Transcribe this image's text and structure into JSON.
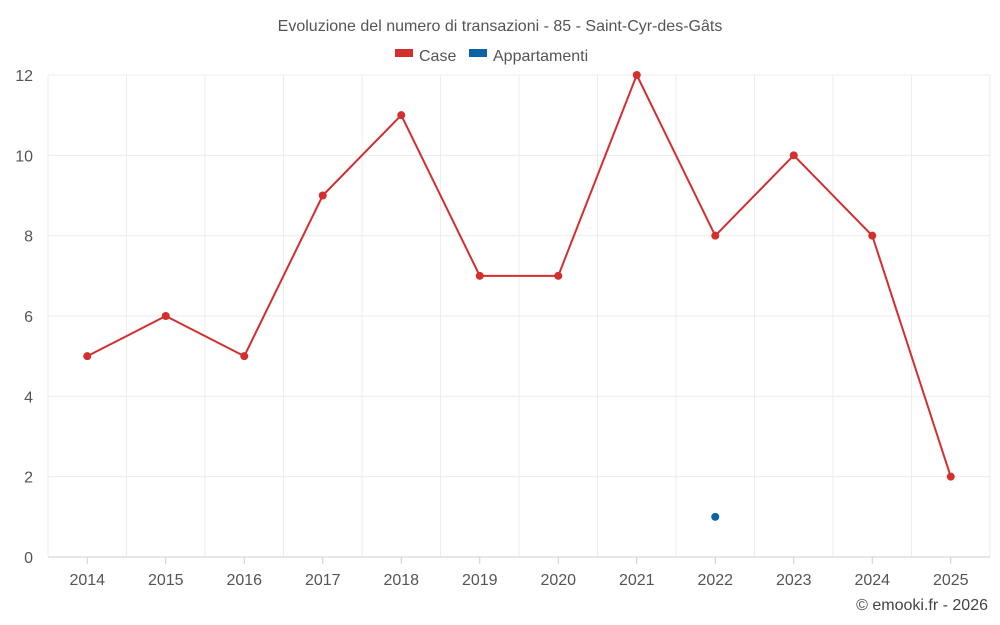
{
  "chart_data": {
    "type": "line",
    "title": "Evoluzione del numero di transazioni - 85 - Saint-Cyr-des-Gâts",
    "categories": [
      "2014",
      "2015",
      "2016",
      "2017",
      "2018",
      "2019",
      "2020",
      "2021",
      "2022",
      "2023",
      "2024",
      "2025"
    ],
    "series": [
      {
        "name": "Case",
        "color": "#d32f2f",
        "values": [
          5,
          6,
          5,
          9,
          11,
          7,
          7,
          12,
          8,
          10,
          8,
          2
        ]
      },
      {
        "name": "Appartamenti",
        "color": "#0b63a6",
        "values": [
          null,
          null,
          null,
          null,
          null,
          null,
          null,
          null,
          1,
          null,
          null,
          null
        ]
      }
    ],
    "ylim": [
      0,
      12
    ],
    "yticks": [
      0,
      2,
      4,
      6,
      8,
      10,
      12
    ],
    "grid": true,
    "legend_position": "top-center",
    "credit": "© emooki.fr - 2026"
  }
}
